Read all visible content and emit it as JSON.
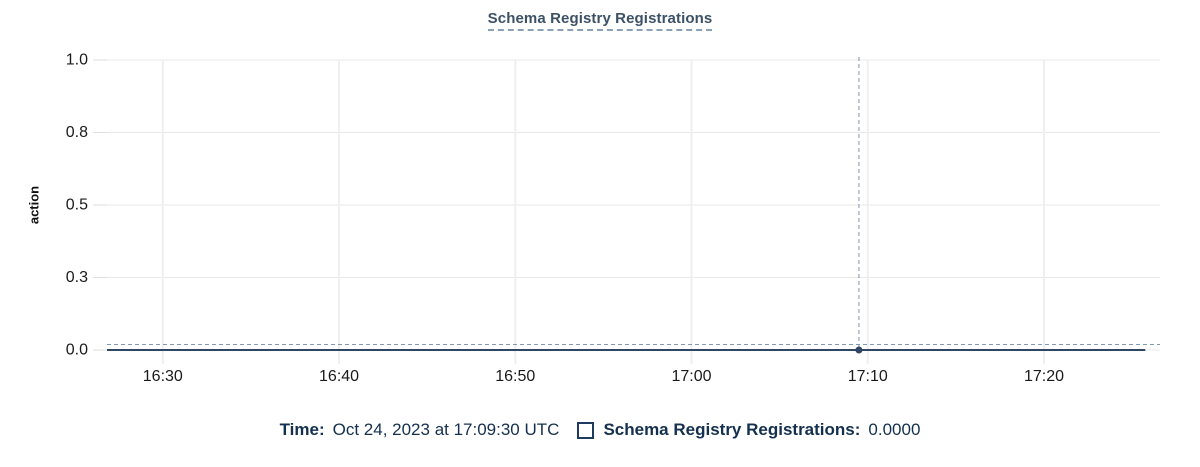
{
  "panel": {
    "title": "Schema Registry Registrations"
  },
  "tooltip": {
    "time_label": "Time:",
    "time_value": "Oct 24, 2023 at 17:09:30 UTC",
    "series_label": "Schema Registry Registrations:",
    "series_value": "0.0000"
  },
  "chart_data": {
    "type": "line",
    "title": "Schema Registry Registrations",
    "xlabel": "",
    "ylabel": "action",
    "ylim": [
      0,
      1
    ],
    "x_range": [
      "16:26:50",
      "17:26:35"
    ],
    "x_ticks": [
      "16:30",
      "16:40",
      "16:50",
      "17:00",
      "17:10",
      "17:20"
    ],
    "y_ticks": [
      {
        "value": 1.0,
        "label": "1.0"
      },
      {
        "value": 0.75,
        "label": "0.8"
      },
      {
        "value": 0.5,
        "label": "0.5"
      },
      {
        "value": 0.25,
        "label": "0.3"
      },
      {
        "value": 0.0,
        "label": "0.0"
      }
    ],
    "grid": true,
    "legend_position": "bottom",
    "series": [
      {
        "name": "Schema Registry Registrations",
        "points": [
          {
            "t": "16:26:50",
            "y": 0
          },
          {
            "t": "17:25:45",
            "y": 0
          }
        ]
      }
    ],
    "hover": {
      "t": "17:09:30",
      "y": 0,
      "value_display": "0.0000",
      "time_display": "Oct 24, 2023 at 17:09:30 UTC"
    }
  },
  "colors": {
    "title": "#3d5166",
    "title_underline": "#8ba1b8",
    "tooltip_text": "#14304f",
    "series_line": "#2f4763",
    "hover_point": "#2f4763",
    "crosshair": "#7f97b1",
    "grid_horizontal": "#e8e8e8",
    "grid_vertical": "#efefef",
    "axis_tick": "#dedede",
    "tick_text": "#1a1a1a"
  }
}
